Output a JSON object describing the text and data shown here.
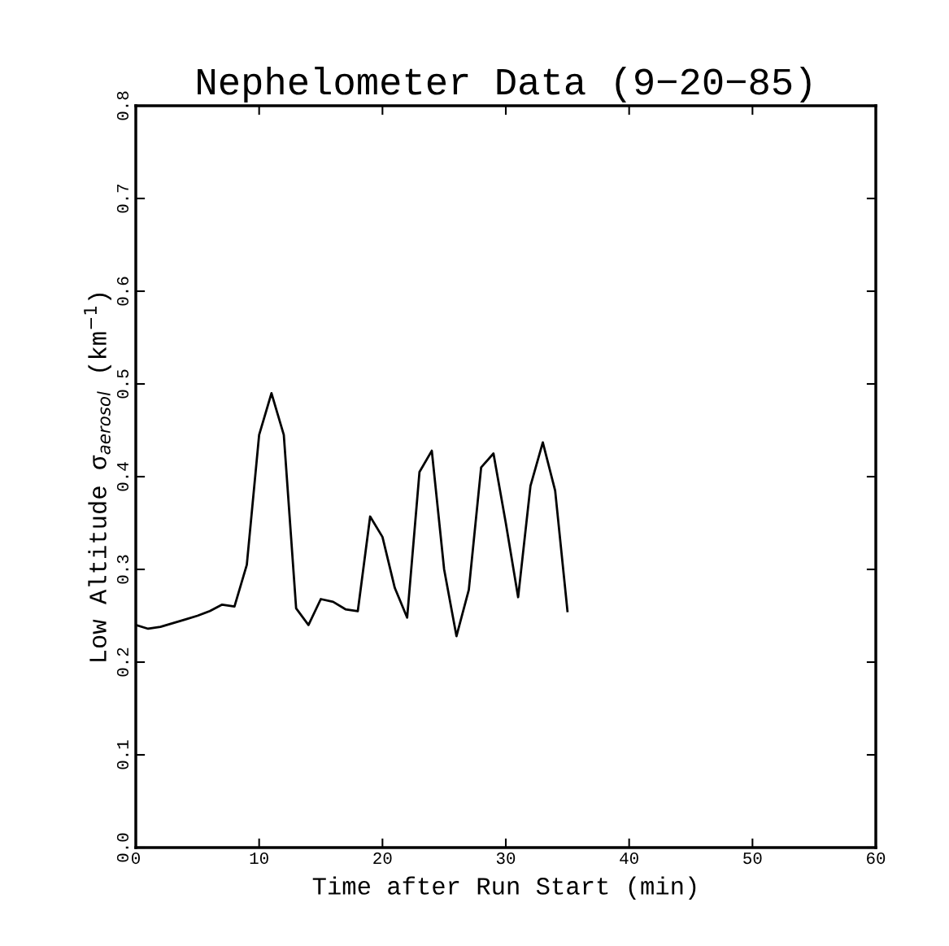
{
  "chart_data": {
    "type": "line",
    "title": "Nephelometer Data (9−20−85)",
    "xlabel": "Time after Run Start (min)",
    "ylabel": "Low Altitude σ$_{aerosol}$ (km$^{−1}$)",
    "x": [
      0,
      1,
      2,
      3,
      4,
      5,
      6,
      7,
      8,
      9,
      10,
      11,
      12,
      13,
      14,
      15,
      16,
      17,
      18,
      19,
      20,
      21,
      22,
      23,
      24,
      25,
      26,
      27,
      28,
      29,
      30,
      31,
      32,
      33,
      34,
      35
    ],
    "series": [
      {
        "color": "#000000",
        "values": [
          0.24,
          0.236,
          0.238,
          0.242,
          0.246,
          0.25,
          0.255,
          0.262,
          0.26,
          0.305,
          0.445,
          0.49,
          0.445,
          0.258,
          0.24,
          0.268,
          0.265,
          0.257,
          0.255,
          0.357,
          0.335,
          0.28,
          0.248,
          0.405,
          0.428,
          0.3,
          0.228,
          0.278,
          0.41,
          0.425,
          0.35,
          0.27,
          0.39,
          0.437,
          0.385,
          0.255
        ]
      }
    ],
    "xlim": [
      0,
      60
    ],
    "xticks": [
      0,
      10,
      20,
      30,
      40,
      50,
      60
    ],
    "ylim": [
      0,
      0.8
    ],
    "yticks": [
      {
        "value": 0,
        "label": "0.0"
      },
      0.1,
      0.2,
      0.3,
      0.4,
      0.5,
      0.6,
      0.7,
      0.8
    ],
    "grid": false,
    "legend": false,
    "marker": "none",
    "line_style": "solid"
  }
}
